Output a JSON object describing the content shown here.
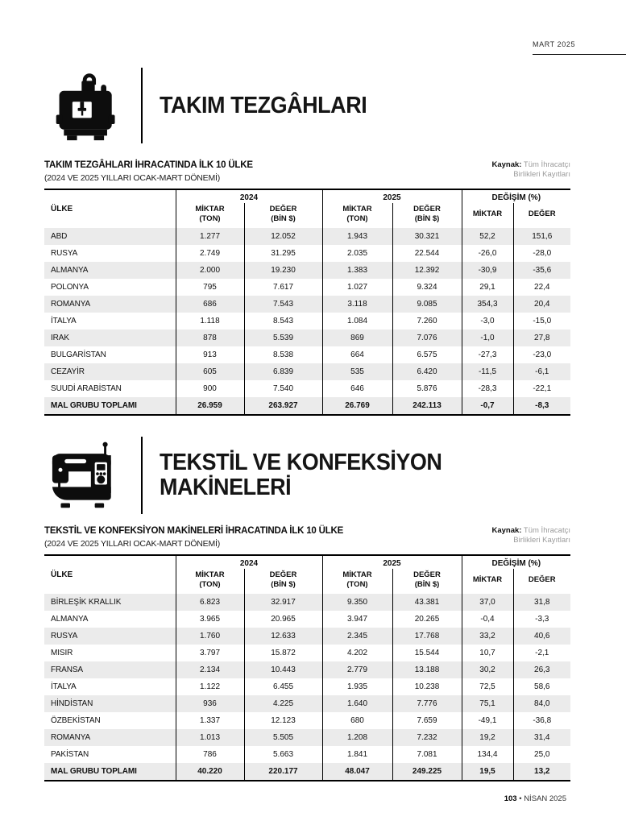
{
  "masthead": {
    "issue": "MART 2025"
  },
  "columns": {
    "country": "ÜLKE",
    "y2024": "2024",
    "y2025": "2025",
    "change": "DEĞİŞİM (%)",
    "miktar": "MİKTAR",
    "ton": "(TON)",
    "deger": "DEĞER",
    "bin": "(BİN $)"
  },
  "sections": [
    {
      "icon": "machine-tool-icon",
      "title_line1": "TAKIM TEZGÂHLARI",
      "title_line2": "",
      "table": {
        "title": "TAKIM TEZGÂHLARI İHRACATINDA İLK 10 ÜLKE",
        "subtitle": "(2024 VE 2025 YILLARI OCAK-MART DÖNEMİ)",
        "source": {
          "label": "Kaynak:",
          "line1": "Tüm İhracatçı",
          "line2": "Birlikleri Kayıtları"
        },
        "rows": [
          [
            "ABD",
            "1.277",
            "12.052",
            "1.943",
            "30.321",
            "52,2",
            "151,6"
          ],
          [
            "RUSYA",
            "2.749",
            "31.295",
            "2.035",
            "22.544",
            "-26,0",
            "-28,0"
          ],
          [
            "ALMANYA",
            "2.000",
            "19.230",
            "1.383",
            "12.392",
            "-30,9",
            "-35,6"
          ],
          [
            "POLONYA",
            "795",
            "7.617",
            "1.027",
            "9.324",
            "29,1",
            "22,4"
          ],
          [
            "ROMANYA",
            "686",
            "7.543",
            "3.118",
            "9.085",
            "354,3",
            "20,4"
          ],
          [
            "İTALYA",
            "1.118",
            "8.543",
            "1.084",
            "7.260",
            "-3,0",
            "-15,0"
          ],
          [
            "IRAK",
            "878",
            "5.539",
            "869",
            "7.076",
            "-1,0",
            "27,8"
          ],
          [
            "BULGARİSTAN",
            "913",
            "8.538",
            "664",
            "6.575",
            "-27,3",
            "-23,0"
          ],
          [
            "CEZAYİR",
            "605",
            "6.839",
            "535",
            "6.420",
            "-11,5",
            "-6,1"
          ],
          [
            "SUUDİ ARABİSTAN",
            "900",
            "7.540",
            "646",
            "5.876",
            "-28,3",
            "-22,1"
          ]
        ],
        "total_row": [
          "MAL GRUBU TOPLAMI",
          "26.959",
          "263.927",
          "26.769",
          "242.113",
          "-0,7",
          "-8,3"
        ]
      }
    },
    {
      "icon": "sewing-machine-icon",
      "title_line1": "TEKSTİL VE KONFEKSİYON",
      "title_line2": "MAKİNELERİ",
      "table": {
        "title": "TEKSTİL VE KONFEKSİYON MAKİNELERİ İHRACATINDA İLK 10 ÜLKE",
        "subtitle": "(2024 VE 2025 YILLARI OCAK-MART DÖNEMİ)",
        "source": {
          "label": "Kaynak:",
          "line1": "Tüm İhracatçı",
          "line2": "Birlikleri Kayıtları"
        },
        "rows": [
          [
            "BİRLEŞİK KRALLIK",
            "6.823",
            "32.917",
            "9.350",
            "43.381",
            "37,0",
            "31,8"
          ],
          [
            "ALMANYA",
            "3.965",
            "20.965",
            "3.947",
            "20.265",
            "-0,4",
            "-3,3"
          ],
          [
            "RUSYA",
            "1.760",
            "12.633",
            "2.345",
            "17.768",
            "33,2",
            "40,6"
          ],
          [
            "MISIR",
            "3.797",
            "15.872",
            "4.202",
            "15.544",
            "10,7",
            "-2,1"
          ],
          [
            "FRANSA",
            "2.134",
            "10.443",
            "2.779",
            "13.188",
            "30,2",
            "26,3"
          ],
          [
            "İTALYA",
            "1.122",
            "6.455",
            "1.935",
            "10.238",
            "72,5",
            "58,6"
          ],
          [
            "HİNDİSTAN",
            "936",
            "4.225",
            "1.640",
            "7.776",
            "75,1",
            "84,0"
          ],
          [
            "ÖZBEKİSTAN",
            "1.337",
            "12.123",
            "680",
            "7.659",
            "-49,1",
            "-36,8"
          ],
          [
            "ROMANYA",
            "1.013",
            "5.505",
            "1.208",
            "7.232",
            "19,2",
            "31,4"
          ],
          [
            "PAKİSTAN",
            "786",
            "5.663",
            "1.841",
            "7.081",
            "134,4",
            "25,0"
          ]
        ],
        "total_row": [
          "MAL GRUBU TOPLAMI",
          "40.220",
          "220.177",
          "48.047",
          "249.225",
          "19,5",
          "13,2"
        ]
      }
    }
  ],
  "footer": {
    "page_number": "103",
    "bullet": "•",
    "issue": "NİSAN 2025"
  }
}
